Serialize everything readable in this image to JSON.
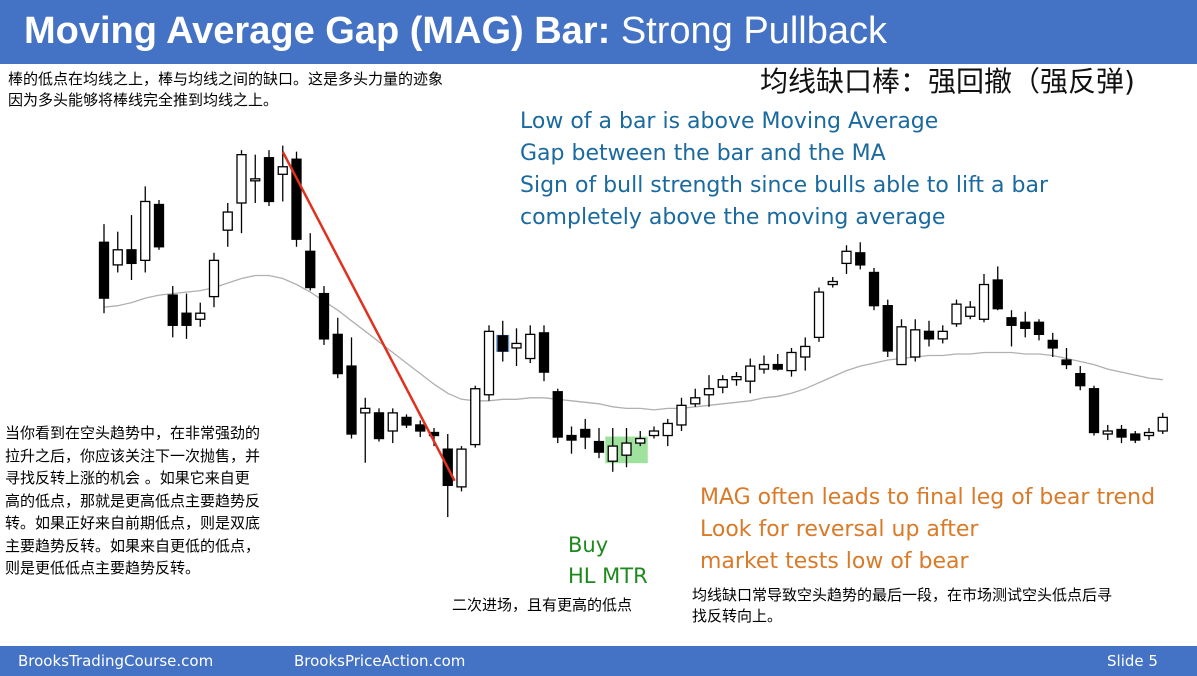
{
  "title": {
    "bold": "Moving Average Gap (MAG) Bar:",
    "normal": " Strong Pullback"
  },
  "subtitle_cn": "均线缺口棒：强回撤（强反弹)",
  "top_left_note": [
    "棒的低点在均线之上，棒与均线之间的缺口。这是多头力量的迹象",
    "因为多头能够将棒线完全推到均线之上。"
  ],
  "blue_note": [
    "Low of a bar is above Moving Average",
    "Gap between the bar and the MA",
    "Sign of bull strength since bulls able to lift a bar",
    "completely above the moving average"
  ],
  "left_note": [
    "当你看到在空头趋势中，在非常强劲的",
    "拉升之后，你应该关注下一次抛售，并",
    "寻找反转上涨的机会 。如果它来自更",
    "高的低点，那就是更高低点主要趋势反",
    "转。如果正好来自前期低点，则是双底",
    "主要趋势反转。如果来自更低的低点，",
    "则是更低低点主要趋势反转。"
  ],
  "green_note": [
    "Buy",
    "HL MTR"
  ],
  "green_note_cn": "二次进场，且有更高的低点",
  "orange_note": [
    "MAG often leads to final leg of bear trend",
    "Look for reversal up after",
    "market tests low of bear"
  ],
  "bottom_right_note": [
    "均线缺口常导致空头趋势的最后一段，在市场测试空头低点后寻",
    "找反转向上。"
  ],
  "footer": {
    "left": "BrooksTradingCourse.com",
    "middle": "BrooksPriceAction.com",
    "slide": "Slide  5"
  },
  "colors": {
    "header": "#4472c4",
    "bull_body": "#ffffff",
    "bear_body": "#000000",
    "ma_line": "#b0b0b0",
    "trendline": "#e0301e",
    "mag_highlight": "#4a7fd0",
    "hl_highlight": "#7dd87d",
    "blue_text": "#1a6aa0",
    "orange_text": "#d97a28",
    "green_text": "#1e8a1e"
  },
  "chart_data": {
    "type": "candlestick",
    "note": "Price axis unlabeled; prices are relative units (higher = up). Bar index is sequential.",
    "bars": [
      {
        "o": 225,
        "h": 237,
        "l": 178,
        "c": 188
      },
      {
        "o": 210,
        "h": 232,
        "l": 205,
        "c": 220
      },
      {
        "o": 220,
        "h": 243,
        "l": 200,
        "c": 211
      },
      {
        "o": 213,
        "h": 262,
        "l": 205,
        "c": 252
      },
      {
        "o": 250,
        "h": 253,
        "l": 220,
        "c": 222
      },
      {
        "o": 190,
        "h": 196,
        "l": 162,
        "c": 170
      },
      {
        "o": 178,
        "h": 191,
        "l": 161,
        "c": 170
      },
      {
        "o": 174,
        "h": 185,
        "l": 169,
        "c": 178
      },
      {
        "o": 189,
        "h": 218,
        "l": 182,
        "c": 213
      },
      {
        "o": 233,
        "h": 251,
        "l": 222,
        "c": 245
      },
      {
        "o": 251,
        "h": 286,
        "l": 231,
        "c": 283
      },
      {
        "o": 267,
        "h": 283,
        "l": 251,
        "c": 267
      },
      {
        "o": 281,
        "h": 286,
        "l": 249,
        "c": 252
      },
      {
        "o": 270,
        "h": 289,
        "l": 252,
        "c": 275
      },
      {
        "o": 280,
        "h": 285,
        "l": 222,
        "c": 227
      },
      {
        "o": 219,
        "h": 231,
        "l": 193,
        "c": 195
      },
      {
        "o": 191,
        "h": 196,
        "l": 157,
        "c": 161
      },
      {
        "o": 164,
        "h": 175,
        "l": 135,
        "c": 138
      },
      {
        "o": 143,
        "h": 162,
        "l": 95,
        "c": 98
      },
      {
        "o": 112,
        "h": 122,
        "l": 79,
        "c": 115
      },
      {
        "o": 112,
        "h": 115,
        "l": 93,
        "c": 95
      },
      {
        "o": 100,
        "h": 115,
        "l": 92,
        "c": 112
      },
      {
        "o": 109,
        "h": 111,
        "l": 102,
        "c": 104
      },
      {
        "o": 104,
        "h": 107,
        "l": 96,
        "c": 100
      },
      {
        "o": 99,
        "h": 102,
        "l": 90,
        "c": 97
      },
      {
        "o": 88,
        "h": 98,
        "l": 43,
        "c": 64
      },
      {
        "o": 63,
        "h": 90,
        "l": 60,
        "c": 88
      },
      {
        "o": 91,
        "h": 130,
        "l": 89,
        "c": 128
      },
      {
        "o": 124,
        "h": 170,
        "l": 120,
        "c": 166
      },
      {
        "o": 163,
        "h": 173,
        "l": 146,
        "c": 153
      },
      {
        "o": 155,
        "h": 168,
        "l": 143,
        "c": 158
      },
      {
        "o": 148,
        "h": 170,
        "l": 145,
        "c": 164
      },
      {
        "o": 165,
        "h": 170,
        "l": 133,
        "c": 139
      },
      {
        "o": 126,
        "h": 128,
        "l": 92,
        "c": 96
      },
      {
        "o": 97,
        "h": 103,
        "l": 85,
        "c": 94
      },
      {
        "o": 101,
        "h": 108,
        "l": 88,
        "c": 96
      },
      {
        "o": 93,
        "h": 102,
        "l": 82,
        "c": 86
      },
      {
        "o": 80,
        "h": 102,
        "l": 73,
        "c": 90
      },
      {
        "o": 84,
        "h": 102,
        "l": 76,
        "c": 92
      },
      {
        "o": 92,
        "h": 100,
        "l": 90,
        "c": 95
      },
      {
        "o": 97,
        "h": 103,
        "l": 95,
        "c": 100
      },
      {
        "o": 97,
        "h": 108,
        "l": 90,
        "c": 105
      },
      {
        "o": 104,
        "h": 122,
        "l": 100,
        "c": 117
      },
      {
        "o": 118,
        "h": 128,
        "l": 116,
        "c": 122
      },
      {
        "o": 124,
        "h": 137,
        "l": 116,
        "c": 128
      },
      {
        "o": 129,
        "h": 137,
        "l": 125,
        "c": 134
      },
      {
        "o": 134,
        "h": 139,
        "l": 130,
        "c": 136
      },
      {
        "o": 133,
        "h": 148,
        "l": 125,
        "c": 143
      },
      {
        "o": 141,
        "h": 150,
        "l": 138,
        "c": 144
      },
      {
        "o": 144,
        "h": 151,
        "l": 140,
        "c": 141
      },
      {
        "o": 140,
        "h": 155,
        "l": 136,
        "c": 152
      },
      {
        "o": 149,
        "h": 162,
        "l": 140,
        "c": 156
      },
      {
        "o": 162,
        "h": 195,
        "l": 159,
        "c": 192
      },
      {
        "o": 197,
        "h": 202,
        "l": 195,
        "c": 199
      },
      {
        "o": 211,
        "h": 223,
        "l": 204,
        "c": 219
      },
      {
        "o": 218,
        "h": 225,
        "l": 207,
        "c": 210
      },
      {
        "o": 205,
        "h": 208,
        "l": 180,
        "c": 183
      },
      {
        "o": 183,
        "h": 187,
        "l": 149,
        "c": 153
      },
      {
        "o": 144,
        "h": 174,
        "l": 144,
        "c": 169
      },
      {
        "o": 149,
        "h": 174,
        "l": 146,
        "c": 167
      },
      {
        "o": 166,
        "h": 173,
        "l": 156,
        "c": 161
      },
      {
        "o": 161,
        "h": 170,
        "l": 158,
        "c": 166
      },
      {
        "o": 171,
        "h": 187,
        "l": 169,
        "c": 184
      },
      {
        "o": 176,
        "h": 186,
        "l": 174,
        "c": 182
      },
      {
        "o": 174,
        "h": 204,
        "l": 172,
        "c": 197
      },
      {
        "o": 200,
        "h": 209,
        "l": 180,
        "c": 181
      },
      {
        "o": 175,
        "h": 180,
        "l": 156,
        "c": 170
      },
      {
        "o": 172,
        "h": 179,
        "l": 162,
        "c": 168
      },
      {
        "o": 172,
        "h": 174,
        "l": 160,
        "c": 164
      },
      {
        "o": 160,
        "h": 165,
        "l": 149,
        "c": 155
      },
      {
        "o": 147,
        "h": 155,
        "l": 141,
        "c": 144
      },
      {
        "o": 138,
        "h": 143,
        "l": 127,
        "c": 130
      },
      {
        "o": 128,
        "h": 130,
        "l": 97,
        "c": 99
      },
      {
        "o": 98,
        "h": 104,
        "l": 94,
        "c": 100
      },
      {
        "o": 101,
        "h": 104,
        "l": 92,
        "c": 96
      },
      {
        "o": 98,
        "h": 100,
        "l": 92,
        "c": 94
      },
      {
        "o": 97,
        "h": 102,
        "l": 94,
        "c": 99
      },
      {
        "o": 100,
        "h": 112,
        "l": 98,
        "c": 109
      }
    ],
    "moving_average": [
      182,
      183,
      185,
      188,
      190,
      191,
      192,
      193,
      195,
      198,
      201,
      203,
      203,
      201,
      197,
      192,
      186,
      180,
      173,
      166,
      159,
      152,
      145,
      138,
      131,
      125,
      121,
      120,
      120,
      121,
      121,
      122,
      122,
      121,
      120,
      119,
      118,
      116,
      115,
      115,
      114,
      115,
      115,
      116,
      117,
      118,
      119,
      120,
      122,
      123,
      125,
      128,
      132,
      136,
      140,
      143,
      145,
      147,
      148,
      149,
      150,
      150,
      151,
      151,
      152,
      152,
      152,
      151,
      151,
      150,
      148,
      146,
      144,
      141,
      139,
      137,
      135,
      134
    ],
    "annotations": {
      "trendline": {
        "from_bar": 13,
        "from_price": 285,
        "to_bar": 25.5,
        "to_price": 67
      },
      "mag_bar_index": 29,
      "hl_bars": [
        37,
        39
      ]
    }
  }
}
